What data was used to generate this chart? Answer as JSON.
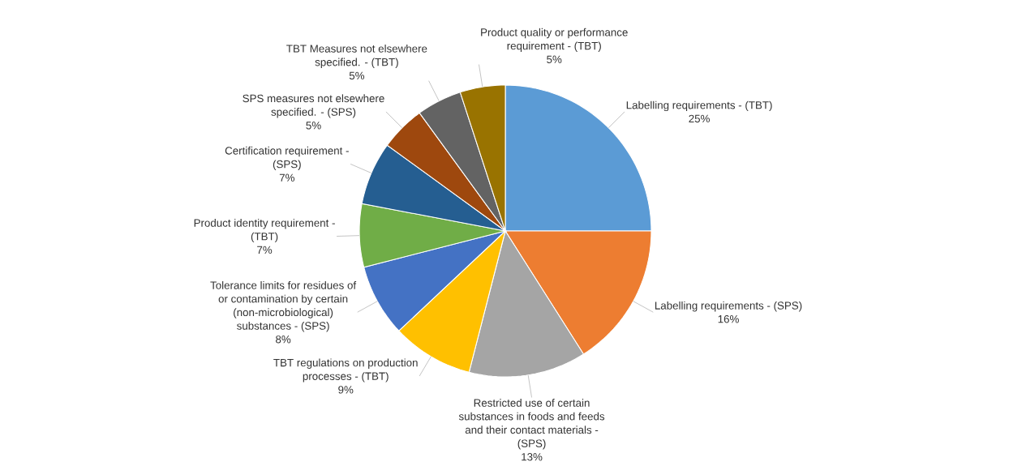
{
  "chart_data": {
    "type": "pie",
    "categories": [
      "Labelling requirements - (TBT)",
      "Labelling requirements - (SPS)",
      "Restricted use of certain substances in foods and feeds and their contact materials - (SPS)",
      "TBT regulations on production processes - (TBT)",
      "Tolerance limits for residues of or contamination by certain (non-microbiological) substances - (SPS)",
      "Product identity requirement - (TBT)",
      "Certification requirement - (SPS)",
      "SPS measures not elsewhere specified. - (SPS)",
      "TBT Measures not elsewhere specified. - (TBT)",
      "Product quality or performance requirement - (TBT)"
    ],
    "values": [
      25,
      16,
      13,
      9,
      8,
      7,
      7,
      5,
      5,
      5
    ],
    "colors": [
      "#5b9bd5",
      "#ed7d31",
      "#a5a5a5",
      "#ffc000",
      "#4472c4",
      "#70ad47",
      "#255e91",
      "#9e480e",
      "#636363",
      "#997300"
    ],
    "value_labels": [
      "25%",
      "16%",
      "13%",
      "9%",
      "8%",
      "7%",
      "7%",
      "5%",
      "5%",
      "5%"
    ]
  }
}
